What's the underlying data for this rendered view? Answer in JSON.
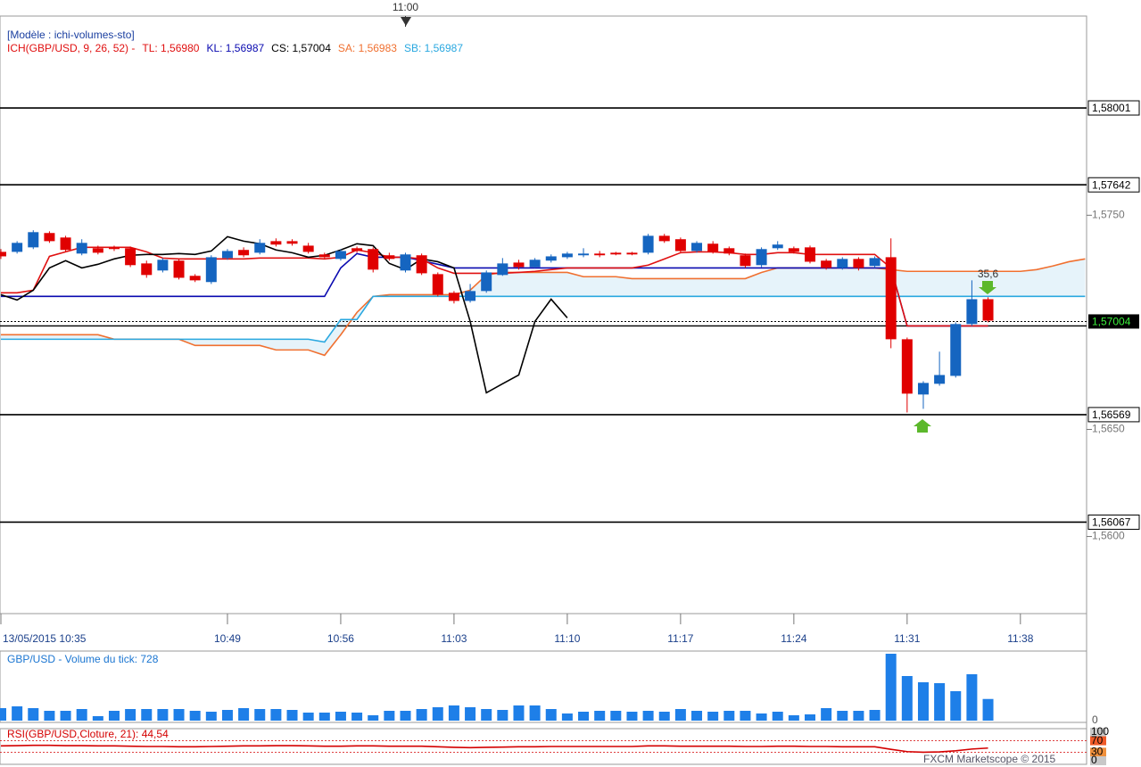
{
  "chart_data": [
    {
      "type": "candlestick",
      "template": "[Modèle : ichi-volumes-sto]",
      "indicator": "ICH(GBP/USD, 9, 26, 52) -",
      "indicator_labels": [
        {
          "label": "TL: 1,56980",
          "color": "#e01010"
        },
        {
          "label": "KL: 1,56987",
          "color": "#0a0ab0"
        },
        {
          "label": "CS: 1,57004",
          "color": "#000000"
        },
        {
          "label": "SA: 1,56983",
          "color": "#f07030"
        },
        {
          "label": "SB: 1,56987",
          "color": "#2aa8e0"
        }
      ],
      "top_marker": "11:00",
      "annotation": "35,6",
      "categories": [
        "10:35",
        "10:36",
        "10:37",
        "10:38",
        "10:39",
        "10:40",
        "10:41",
        "10:42",
        "10:43",
        "10:44",
        "10:45",
        "10:46",
        "10:47",
        "10:48",
        "10:49",
        "10:50",
        "10:51",
        "10:52",
        "10:53",
        "10:54",
        "10:55",
        "10:56",
        "10:57",
        "10:58",
        "10:59",
        "11:00",
        "11:01",
        "11:02",
        "11:03",
        "11:04",
        "11:05",
        "11:06",
        "11:07",
        "11:08",
        "11:09",
        "11:10",
        "11:11",
        "11:12",
        "11:13",
        "11:14",
        "11:15",
        "11:16",
        "11:17",
        "11:18",
        "11:19",
        "11:20",
        "11:21",
        "11:22",
        "11:23",
        "11:24",
        "11:25",
        "11:26",
        "11:27",
        "11:28",
        "11:29",
        "11:30",
        "11:31",
        "11:32",
        "11:33",
        "11:34",
        "11:35",
        "11:36",
        "11:37",
        "11:38",
        "11:39",
        "11:40",
        "11:41",
        "11:42"
      ],
      "open": [
        1.57329,
        1.57329,
        1.5735,
        1.57417,
        1.57396,
        1.57321,
        1.57346,
        1.5735,
        1.57346,
        1.57275,
        1.57242,
        1.57288,
        1.57217,
        1.57188,
        1.573,
        1.57338,
        1.57325,
        1.57379,
        1.57379,
        1.57358,
        1.57317,
        1.57296,
        1.57346,
        1.57342,
        1.57313,
        1.57242,
        1.57313,
        1.57225,
        1.57138,
        1.571,
        1.57146,
        1.57221,
        1.57279,
        1.57258,
        1.57288,
        1.57304,
        1.57313,
        1.57321,
        1.57325,
        1.57325,
        1.57325,
        1.57404,
        1.57388,
        1.57333,
        1.57367,
        1.57346,
        1.57313,
        1.57267,
        1.57346,
        1.57346,
        1.5735,
        1.57288,
        1.57254,
        1.57296,
        1.57263,
        1.57304,
        1.56921,
        1.56663,
        1.56713,
        1.5675,
        1.56992,
        1.57108,
        null,
        null,
        null,
        null,
        null,
        null
      ],
      "high": [
        1.57342,
        1.57379,
        1.5743,
        1.57425,
        1.57404,
        1.57388,
        1.57358,
        1.57358,
        1.57354,
        1.57288,
        1.573,
        1.57296,
        1.57225,
        1.57313,
        1.57342,
        1.5735,
        1.57388,
        1.57392,
        1.57388,
        1.57371,
        1.57325,
        1.57342,
        1.57354,
        1.5735,
        1.57325,
        1.57325,
        1.57321,
        1.57233,
        1.57146,
        1.57179,
        1.57242,
        1.573,
        1.57292,
        1.573,
        1.57317,
        1.57329,
        1.57346,
        1.57333,
        1.57329,
        1.57329,
        1.57413,
        1.57413,
        1.57396,
        1.57379,
        1.57379,
        1.57354,
        1.57321,
        1.5735,
        1.57379,
        1.57354,
        1.57358,
        1.57296,
        1.57304,
        1.57304,
        1.57308,
        1.57392,
        1.56929,
        1.56725,
        1.56863,
        1.57,
        1.57196,
        1.57117,
        null,
        null,
        null,
        null,
        null,
        null
      ],
      "low": [
        1.57296,
        1.57321,
        1.57342,
        1.57371,
        1.57329,
        1.57313,
        1.57317,
        1.57333,
        1.57258,
        1.57208,
        1.57233,
        1.572,
        1.57188,
        1.57179,
        1.57292,
        1.57304,
        1.57317,
        1.57354,
        1.57358,
        1.57321,
        1.57296,
        1.57288,
        1.57325,
        1.57233,
        1.57288,
        1.57233,
        1.57221,
        1.57121,
        1.57088,
        1.57092,
        1.57138,
        1.57217,
        1.57246,
        1.57254,
        1.57279,
        1.57296,
        1.57304,
        1.57304,
        1.57313,
        1.57313,
        1.57317,
        1.57371,
        1.57325,
        1.57325,
        1.57321,
        1.57313,
        1.57254,
        1.57258,
        1.57338,
        1.57321,
        1.57275,
        1.57246,
        1.57246,
        1.57242,
        1.57254,
        1.56879,
        1.56579,
        1.56596,
        1.56704,
        1.56742,
        1.56983,
        1.57,
        null,
        null,
        null,
        null,
        null,
        null
      ],
      "close": [
        1.57308,
        1.57371,
        1.57421,
        1.57379,
        1.57338,
        1.57371,
        1.57325,
        1.57342,
        1.57267,
        1.57221,
        1.57292,
        1.57208,
        1.57196,
        1.57304,
        1.57333,
        1.57313,
        1.57371,
        1.57363,
        1.57367,
        1.57329,
        1.57304,
        1.57333,
        1.57333,
        1.57246,
        1.57296,
        1.57317,
        1.57229,
        1.57129,
        1.571,
        1.57146,
        1.57233,
        1.57275,
        1.57258,
        1.57292,
        1.57308,
        1.57321,
        1.57321,
        1.57313,
        1.57317,
        1.57317,
        1.57404,
        1.57379,
        1.57333,
        1.57371,
        1.57329,
        1.57321,
        1.57263,
        1.57342,
        1.57363,
        1.57329,
        1.57283,
        1.57254,
        1.57296,
        1.57254,
        1.573,
        1.56921,
        1.56667,
        1.56717,
        1.56754,
        1.56992,
        1.57108,
        1.57008,
        null,
        null,
        null,
        null,
        null,
        null
      ],
      "up_color": "#1565c0",
      "down_color": "#e00000",
      "lines": [
        {
          "color": "#f07030",
          "values": [
            1.56942,
            1.56942,
            1.56942,
            1.56942,
            1.56942,
            1.56942,
            1.56942,
            1.56921,
            1.56921,
            1.56921,
            1.56921,
            1.56921,
            1.56892,
            1.56892,
            1.56892,
            1.56892,
            1.56892,
            1.56871,
            1.56871,
            1.56871,
            1.56846,
            1.56942,
            1.57046,
            1.57121,
            1.57129,
            1.57129,
            1.57129,
            1.57129,
            1.57129,
            1.5715,
            1.57221,
            1.57233,
            1.57233,
            1.57233,
            1.57233,
            1.57233,
            1.57213,
            1.57213,
            1.57213,
            1.57204,
            1.57204,
            1.57204,
            1.57204,
            1.57204,
            1.57204,
            1.57204,
            1.57204,
            1.57233,
            1.57254,
            1.57254,
            1.57254,
            1.57254,
            1.57254,
            1.57254,
            1.57254,
            1.57246,
            1.57238,
            1.57238,
            1.57238,
            1.57238,
            1.57238,
            1.57238,
            1.57238,
            1.57238,
            1.57246,
            1.57263,
            1.57283,
            1.57296
          ]
        },
        {
          "color": "#2aa8e0",
          "values": [
            1.56921,
            1.56921,
            1.56921,
            1.56921,
            1.56921,
            1.56921,
            1.56921,
            1.56921,
            1.56921,
            1.56921,
            1.56921,
            1.56921,
            1.56921,
            1.56921,
            1.56921,
            1.56921,
            1.56921,
            1.56921,
            1.56921,
            1.56921,
            1.56908,
            1.57013,
            1.57013,
            1.57121,
            1.57121,
            1.57121,
            1.57121,
            1.57121,
            1.57121,
            1.57121,
            1.57121,
            1.57121,
            1.57121,
            1.57121,
            1.57121,
            1.57121,
            1.57121,
            1.57121,
            1.57121,
            1.57121,
            1.57121,
            1.57121,
            1.57121,
            1.57121,
            1.57121,
            1.57121,
            1.57121,
            1.57121,
            1.57121,
            1.57121,
            1.57121,
            1.57121,
            1.57121,
            1.57121,
            1.57121,
            1.57121,
            1.57121,
            1.57121,
            1.57121,
            1.57121,
            1.57121,
            1.57121,
            1.57121,
            1.57121,
            1.57121,
            1.57121,
            1.57121,
            1.57121
          ]
        },
        {
          "color": "#0a0ab0",
          "values": [
            1.57121,
            1.57121,
            1.57121,
            1.57121,
            1.57121,
            1.57121,
            1.57121,
            1.57121,
            1.57121,
            1.57121,
            1.57121,
            1.57121,
            1.57121,
            1.57121,
            1.57121,
            1.57121,
            1.57121,
            1.57121,
            1.57121,
            1.57121,
            1.57121,
            1.57254,
            1.57321,
            1.57304,
            1.57304,
            1.57304,
            1.57288,
            1.57271,
            1.57254,
            1.57254,
            1.57254,
            1.57254,
            1.57254,
            1.57254,
            1.57254,
            1.57254,
            1.57254,
            1.57254,
            1.57254,
            1.57254,
            1.57254,
            1.57254,
            1.57254,
            1.57254,
            1.57254,
            1.57254,
            1.57254,
            1.57254,
            1.57254,
            1.57254,
            1.57254,
            1.57254,
            1.57254,
            1.57254,
            1.57254,
            1.57254,
            1.56983,
            1.56983,
            1.56983,
            1.56983,
            1.56983,
            1.56983,
            null,
            null,
            null,
            null,
            null,
            null
          ]
        },
        {
          "color": "#e01010",
          "values": [
            1.57138,
            1.57138,
            1.5715,
            1.57308,
            1.57329,
            1.5735,
            1.5735,
            1.5735,
            1.5735,
            1.57329,
            1.573,
            1.57296,
            1.57296,
            1.57296,
            1.57296,
            1.57296,
            1.573,
            1.573,
            1.573,
            1.573,
            1.57296,
            1.57304,
            1.57338,
            1.57325,
            1.57304,
            1.57304,
            1.57296,
            1.57254,
            1.57229,
            1.57229,
            1.57229,
            1.57229,
            1.57233,
            1.57238,
            1.57246,
            1.57254,
            1.57254,
            1.57254,
            1.57254,
            1.57254,
            1.57267,
            1.57296,
            1.57325,
            1.57329,
            1.57329,
            1.57325,
            1.57317,
            1.57317,
            1.57325,
            1.57325,
            1.57317,
            1.57317,
            1.57317,
            1.57317,
            1.57317,
            1.57254,
            1.56983,
            1.56983,
            1.56983,
            1.56983,
            1.56983,
            1.56983,
            null,
            null,
            null,
            null,
            null,
            null
          ]
        },
        {
          "color": "#000000",
          "values": [
            1.57129,
            1.57104,
            1.5715,
            1.57254,
            1.57288,
            1.57254,
            1.57271,
            1.57296,
            1.57313,
            1.57317,
            1.57317,
            1.57321,
            1.57317,
            1.57333,
            1.574,
            1.57379,
            1.57367,
            1.57338,
            1.57325,
            1.57304,
            1.57313,
            1.57338,
            1.57367,
            1.57358,
            1.57275,
            1.57246,
            1.57296,
            1.57283,
            1.57254,
            1.57004,
            1.56671,
            1.56713,
            1.56754,
            1.57004,
            1.57108,
            1.57021,
            null,
            null,
            null,
            null,
            null,
            null,
            null,
            null,
            null,
            null,
            null,
            null,
            null,
            null,
            null,
            null,
            null,
            null,
            null,
            null,
            null,
            null,
            null,
            null,
            null,
            null,
            null,
            null,
            null,
            null,
            null,
            null
          ]
        }
      ],
      "cloud_color": "#e6f3fa",
      "levels": [
        {
          "value": 1.58001,
          "label": "1,58001"
        },
        {
          "value": 1.57642,
          "label": "1,57642"
        },
        {
          "value": 1.56569,
          "label": "1,56569"
        },
        {
          "value": 1.56067,
          "label": "1,56067"
        }
      ],
      "current_price": {
        "value": 1.57004,
        "label": "1,57004"
      },
      "ylim": [
        1.5564,
        1.5843
      ],
      "yticks": [
        {
          "value": 1.575,
          "label": "1,5750"
        },
        {
          "value": 1.565,
          "label": "1,5650"
        },
        {
          "value": 1.56,
          "label": "1,5600"
        }
      ],
      "xticks": [
        {
          "value": "10:35",
          "label": "13/05/2015 10:35"
        },
        "10:49",
        "10:56",
        "11:03",
        "11:10",
        "11:17",
        "11:24",
        "11:31",
        "11:38"
      ]
    },
    {
      "type": "bar",
      "title": "GBP/USD - Volume du tick: 728",
      "color": "#1e7fe8",
      "values": [
        420,
        480,
        420,
        330,
        330,
        390,
        150,
        330,
        390,
        390,
        390,
        390,
        330,
        300,
        360,
        420,
        390,
        390,
        360,
        270,
        270,
        300,
        270,
        180,
        330,
        330,
        390,
        450,
        510,
        450,
        390,
        360,
        510,
        510,
        390,
        240,
        300,
        330,
        330,
        300,
        330,
        300,
        390,
        330,
        300,
        330,
        330,
        240,
        300,
        180,
        210,
        420,
        330,
        330,
        360,
        2250,
        1500,
        1290,
        1260,
        990,
        1560,
        728
      ],
      "ylim": [
        0,
        2340
      ],
      "yticks": [
        0
      ]
    },
    {
      "type": "line",
      "title": "RSI(GBP/USD,Cloture, 21): 44,54",
      "color": "#d40000",
      "values": [
        52,
        53,
        54,
        54,
        53,
        53,
        52,
        52,
        51,
        50,
        50,
        49,
        49,
        50,
        51,
        52,
        52,
        53,
        53,
        52,
        51,
        51,
        52,
        52,
        51,
        51,
        51,
        49,
        47,
        46,
        47,
        48,
        49,
        49,
        50,
        50,
        50,
        50,
        50,
        50,
        52,
        52,
        51,
        51,
        51,
        51,
        50,
        50,
        51,
        51,
        50,
        50,
        49,
        49,
        49,
        40,
        32,
        30,
        31,
        35,
        41,
        44.54
      ],
      "ylim": [
        0,
        100
      ],
      "yticks": [
        100,
        70,
        30,
        0
      ],
      "ytick_colors": [
        "#c8c8c8",
        "#f05a28",
        "#f0903c",
        "#c8c8c8"
      ],
      "footer": "FXCM Marketscope © 2015"
    }
  ]
}
